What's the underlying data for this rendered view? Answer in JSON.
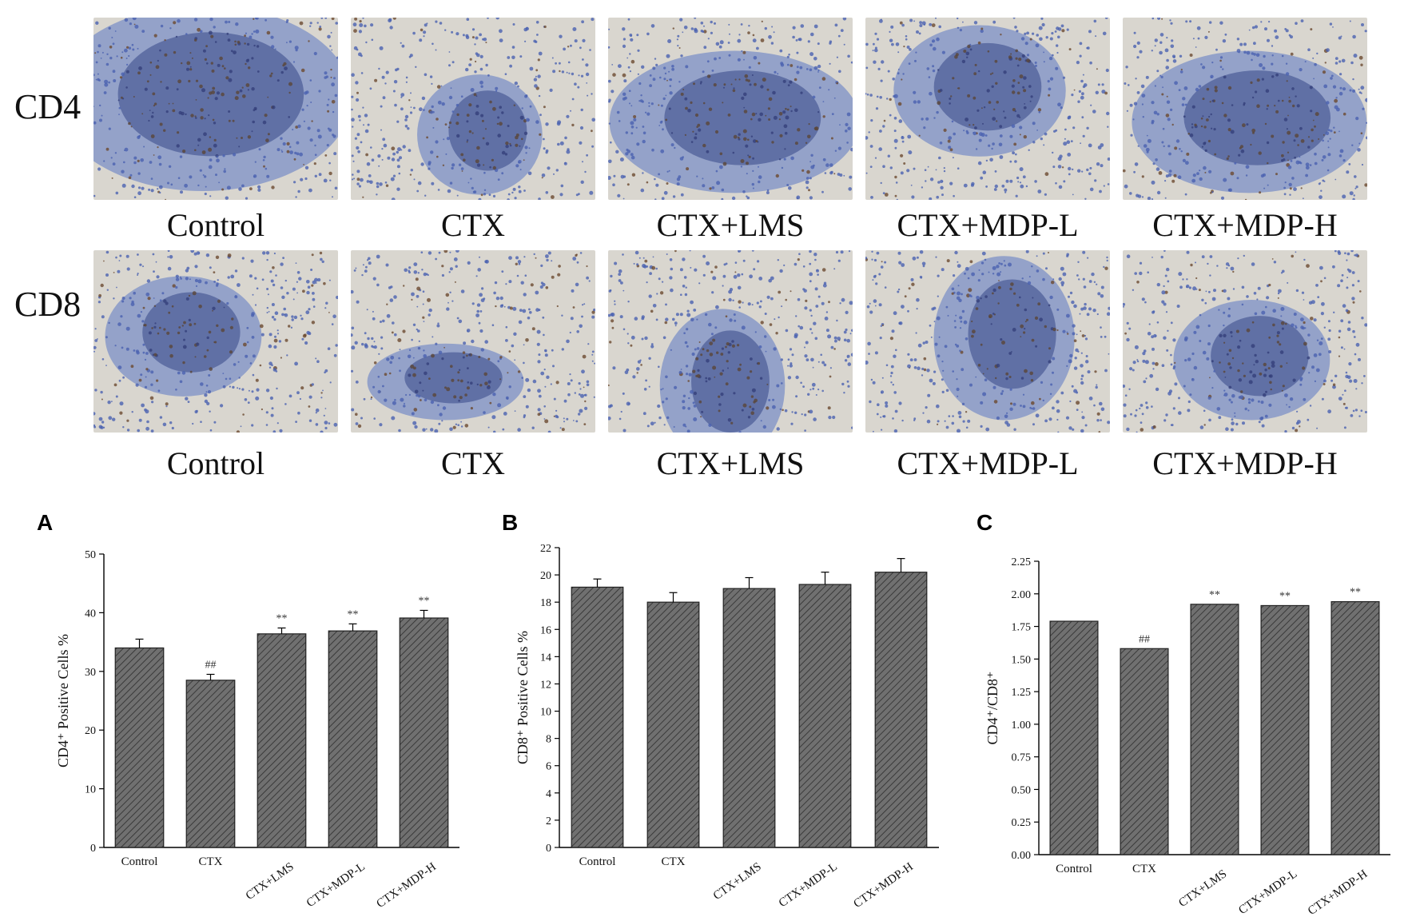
{
  "micrographs": {
    "rows": [
      {
        "label": "CD4",
        "captions": [
          "Control",
          "CTX",
          "CTX+LMS",
          "CTX+MDP-L",
          "CTX+MDP-H"
        ]
      },
      {
        "label": "CD8",
        "captions": [
          "Control",
          "CTX",
          "CTX+LMS",
          "CTX+MDP-L",
          "CTX+MDP-H"
        ]
      }
    ],
    "colors": {
      "stain_blue": "#5b78c4",
      "stain_brown": "#5a4638",
      "background": "#d9d6cf"
    }
  },
  "panels": [
    {
      "letter": "A"
    },
    {
      "letter": "B"
    },
    {
      "letter": "C"
    }
  ],
  "chart_data": [
    {
      "type": "bar",
      "panel": "A",
      "categories": [
        "Control",
        "CTX",
        "CTX+LMS",
        "CTX+MDP-L",
        "CTX+MDP-H"
      ],
      "values": [
        34.0,
        28.5,
        36.4,
        36.9,
        39.1
      ],
      "errors": [
        1.5,
        1.0,
        1.0,
        1.2,
        1.3
      ],
      "annotations": [
        "",
        "##",
        "**",
        "**",
        "**"
      ],
      "ylabel": "CD4⁺ Positive Cells %",
      "ylim": [
        0,
        50
      ],
      "yticks": [
        0,
        10,
        20,
        30,
        40,
        50
      ],
      "bar_color": "#707070"
    },
    {
      "type": "bar",
      "panel": "B",
      "categories": [
        "Control",
        "CTX",
        "CTX+LMS",
        "CTX+MDP-L",
        "CTX+MDP-H"
      ],
      "values": [
        19.1,
        18.0,
        19.0,
        19.3,
        20.2
      ],
      "errors": [
        0.6,
        0.7,
        0.8,
        0.9,
        1.0
      ],
      "annotations": [
        "",
        "",
        "",
        "",
        ""
      ],
      "ylabel": "CD8⁺ Positive Cells %",
      "ylim": [
        0,
        22
      ],
      "yticks": [
        0,
        2,
        4,
        6,
        8,
        10,
        12,
        14,
        16,
        18,
        20,
        22
      ],
      "bar_color": "#707070"
    },
    {
      "type": "bar",
      "panel": "C",
      "categories": [
        "Control",
        "CTX",
        "CTX+LMS",
        "CTX+MDP-L",
        "CTX+MDP-H"
      ],
      "values": [
        1.79,
        1.58,
        1.92,
        1.91,
        1.94
      ],
      "errors": [
        0,
        0,
        0,
        0,
        0
      ],
      "annotations": [
        "",
        "##",
        "**",
        "**",
        "**"
      ],
      "ylabel": "CD4⁺/CD8⁺",
      "ylim": [
        0,
        2.25
      ],
      "yticks": [
        "0.00",
        "0.25",
        "0.50",
        "0.75",
        "1.00",
        "1.25",
        "1.50",
        "1.75",
        "2.00",
        "2.25"
      ],
      "bar_color": "#707070"
    }
  ]
}
